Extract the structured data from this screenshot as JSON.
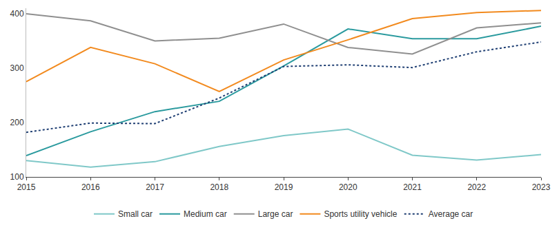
{
  "chart_data": {
    "type": "line",
    "x": [
      2015,
      2016,
      2017,
      2018,
      2019,
      2020,
      2021,
      2022,
      2023
    ],
    "series": [
      {
        "name": "Small car",
        "color": "#7fc8c8",
        "line_style": "solid",
        "values": [
          130,
          118,
          128,
          156,
          176,
          188,
          140,
          131,
          141
        ]
      },
      {
        "name": "Medium car",
        "color": "#2a9a9e",
        "line_style": "solid",
        "values": [
          139,
          183,
          220,
          239,
          304,
          372,
          354,
          354,
          377
        ]
      },
      {
        "name": "Large car",
        "color": "#8f8f8f",
        "line_style": "solid",
        "values": [
          400,
          387,
          350,
          355,
          381,
          338,
          326,
          374,
          383
        ]
      },
      {
        "name": "Sports utility vehicle",
        "color": "#f28a1e",
        "line_style": "solid",
        "values": [
          275,
          338,
          308,
          257,
          315,
          352,
          391,
          402,
          406
        ]
      },
      {
        "name": "Average car",
        "color": "#1f3f73",
        "line_style": "dotted",
        "values": [
          182,
          199,
          198,
          245,
          303,
          306,
          301,
          330,
          348
        ]
      }
    ],
    "xlim": [
      2015,
      2023
    ],
    "xticks": [
      2015,
      2016,
      2017,
      2018,
      2019,
      2020,
      2021,
      2022,
      2023
    ],
    "ylim": [
      100,
      410
    ],
    "yticks": [
      100,
      200,
      300,
      400
    ],
    "grid": false,
    "legend": "bottom"
  }
}
